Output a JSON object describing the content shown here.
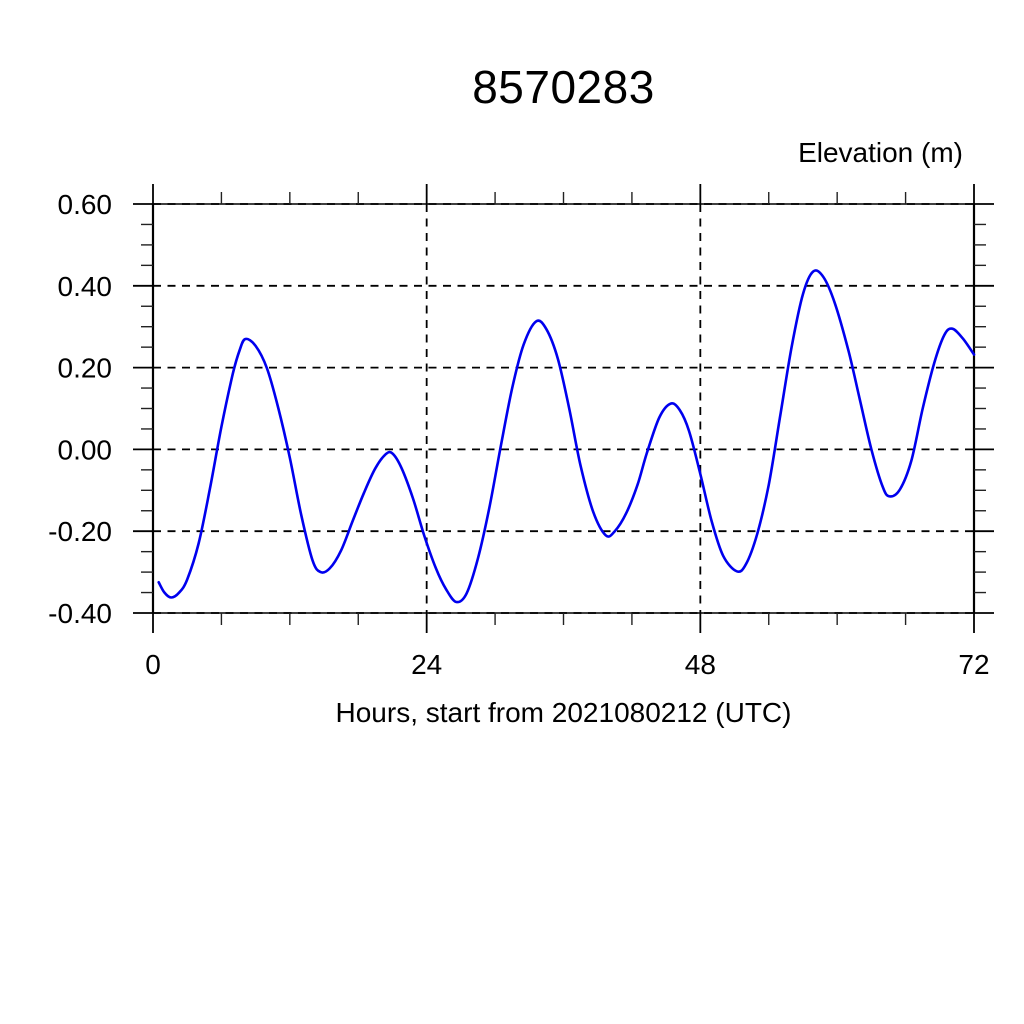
{
  "page": {
    "background": "#ffffff"
  },
  "chart_data": {
    "type": "line",
    "title": "8570283",
    "ylabel": "Elevation (m)",
    "xlabel": "Hours, start from 2021080212 (UTC)",
    "xlim": [
      0,
      72
    ],
    "ylim": [
      -0.4,
      0.6
    ],
    "x_major_ticks": [
      0,
      24,
      48,
      72
    ],
    "x_tick_labels": [
      "0",
      "24",
      "48",
      "72"
    ],
    "x_minor_step": 6,
    "y_major_ticks": [
      0.6,
      0.4,
      0.2,
      0.0,
      -0.2,
      -0.4
    ],
    "y_tick_labels": [
      "0.60",
      "0.40",
      "0.20",
      "0.00",
      "-0.20",
      "-0.40"
    ],
    "y_minor_step": 0.05,
    "grid": {
      "style": "dashed",
      "color": "#000000",
      "at": "all major ticks"
    },
    "legend": "none",
    "frame_color": "#000000",
    "line_color": "#0000EE",
    "line_width": 2.6,
    "series": [
      {
        "name": "Elevation",
        "units": "m",
        "x_units": "hours since 2021080212 UTC",
        "points": [
          [
            0.5,
            -0.325
          ],
          [
            1.0,
            -0.35
          ],
          [
            1.6,
            -0.362
          ],
          [
            2.3,
            -0.35
          ],
          [
            3.0,
            -0.318
          ],
          [
            4.0,
            -0.23
          ],
          [
            5.0,
            -0.095
          ],
          [
            6.0,
            0.055
          ],
          [
            7.0,
            0.185
          ],
          [
            7.6,
            0.243
          ],
          [
            8.1,
            0.27
          ],
          [
            9.0,
            0.253
          ],
          [
            10.0,
            0.198
          ],
          [
            11.0,
            0.1
          ],
          [
            12.0,
            -0.02
          ],
          [
            13.0,
            -0.16
          ],
          [
            14.0,
            -0.272
          ],
          [
            14.7,
            -0.3
          ],
          [
            15.5,
            -0.291
          ],
          [
            16.5,
            -0.247
          ],
          [
            17.5,
            -0.176
          ],
          [
            18.5,
            -0.106
          ],
          [
            19.5,
            -0.046
          ],
          [
            20.4,
            -0.012
          ],
          [
            21.0,
            -0.01
          ],
          [
            21.8,
            -0.046
          ],
          [
            22.8,
            -0.12
          ],
          [
            23.8,
            -0.212
          ],
          [
            24.8,
            -0.29
          ],
          [
            25.7,
            -0.342
          ],
          [
            26.6,
            -0.373
          ],
          [
            27.5,
            -0.352
          ],
          [
            28.5,
            -0.266
          ],
          [
            29.5,
            -0.142
          ],
          [
            30.5,
            0.008
          ],
          [
            31.5,
            0.15
          ],
          [
            32.5,
            0.256
          ],
          [
            33.6,
            0.313
          ],
          [
            34.5,
            0.294
          ],
          [
            35.5,
            0.222
          ],
          [
            36.5,
            0.1
          ],
          [
            37.5,
            -0.04
          ],
          [
            38.6,
            -0.152
          ],
          [
            39.7,
            -0.21
          ],
          [
            40.5,
            -0.2
          ],
          [
            41.5,
            -0.156
          ],
          [
            42.5,
            -0.086
          ],
          [
            43.3,
            -0.01
          ],
          [
            44.4,
            0.078
          ],
          [
            45.4,
            0.112
          ],
          [
            46.2,
            0.096
          ],
          [
            47.0,
            0.046
          ],
          [
            48.0,
            -0.06
          ],
          [
            49.0,
            -0.176
          ],
          [
            50.0,
            -0.26
          ],
          [
            51.2,
            -0.298
          ],
          [
            52.0,
            -0.281
          ],
          [
            53.0,
            -0.206
          ],
          [
            54.0,
            -0.086
          ],
          [
            55.0,
            0.082
          ],
          [
            56.0,
            0.25
          ],
          [
            57.0,
            0.38
          ],
          [
            57.9,
            0.435
          ],
          [
            58.8,
            0.421
          ],
          [
            59.8,
            0.357
          ],
          [
            61.0,
            0.24
          ],
          [
            62.0,
            0.12
          ],
          [
            63.0,
            0.0
          ],
          [
            64.0,
            -0.092
          ],
          [
            64.6,
            -0.115
          ],
          [
            65.5,
            -0.098
          ],
          [
            66.5,
            -0.028
          ],
          [
            67.5,
            0.1
          ],
          [
            68.5,
            0.21
          ],
          [
            69.4,
            0.28
          ],
          [
            70.1,
            0.295
          ],
          [
            71.0,
            0.272
          ],
          [
            72.0,
            0.232
          ]
        ]
      }
    ]
  }
}
